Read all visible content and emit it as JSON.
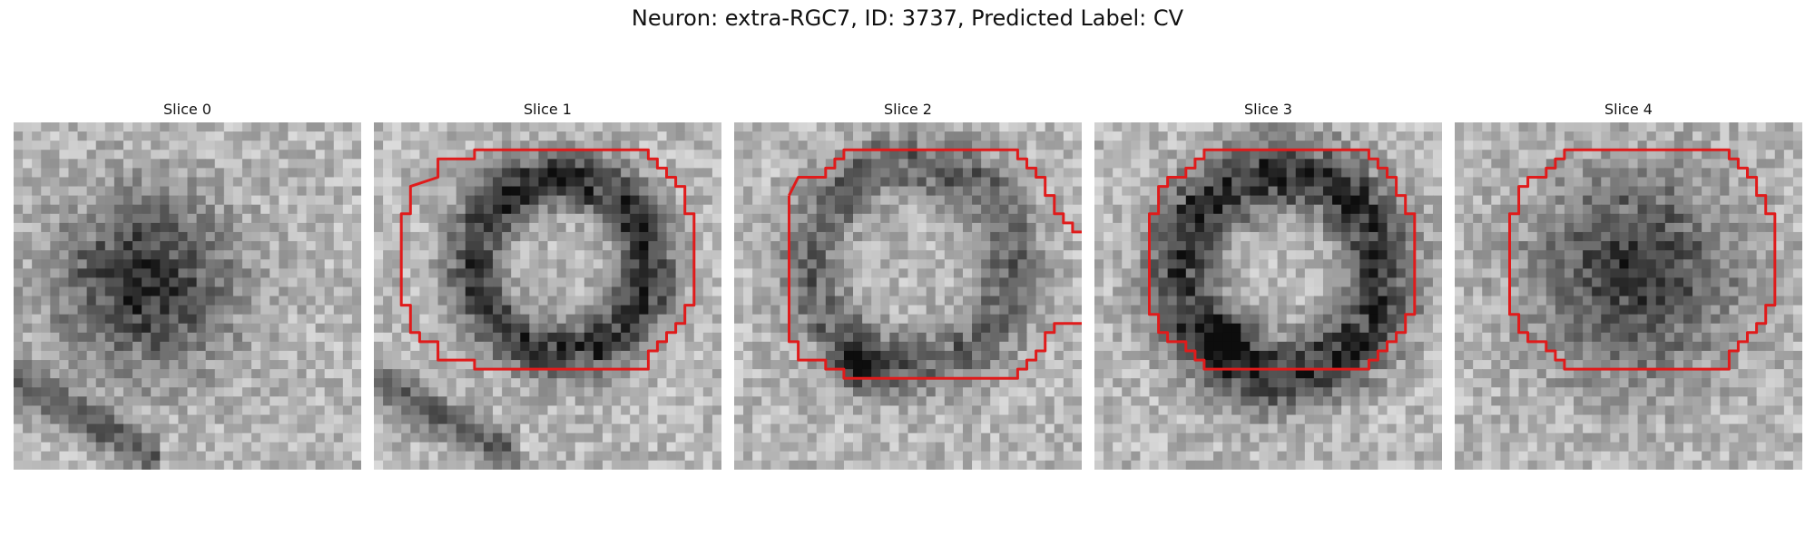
{
  "figure": {
    "title": "Neuron: extra-RGC7, ID: 3737, Predicted Label: CV",
    "contour_color": "#e01b1b"
  },
  "panels": [
    {
      "title": "Slice 0",
      "contour": []
    },
    {
      "title": "Slice 1",
      "contour": [
        [
          4,
          7
        ],
        [
          7,
          6
        ],
        [
          7,
          4
        ],
        [
          11,
          4
        ],
        [
          11,
          3
        ],
        [
          30,
          3
        ],
        [
          30,
          4
        ],
        [
          31,
          4
        ],
        [
          31,
          5
        ],
        [
          32,
          5
        ],
        [
          32,
          6
        ],
        [
          33,
          6
        ],
        [
          33,
          7
        ],
        [
          34,
          7
        ],
        [
          34,
          10
        ],
        [
          35,
          10
        ],
        [
          35,
          20
        ],
        [
          34,
          20
        ],
        [
          34,
          22
        ],
        [
          33,
          22
        ],
        [
          33,
          23
        ],
        [
          32,
          23
        ],
        [
          32,
          24
        ],
        [
          31,
          24
        ],
        [
          31,
          25
        ],
        [
          30,
          25
        ],
        [
          30,
          27
        ],
        [
          11,
          27
        ],
        [
          11,
          26
        ],
        [
          7,
          26
        ],
        [
          7,
          24
        ],
        [
          5,
          24
        ],
        [
          5,
          23
        ],
        [
          4,
          23
        ],
        [
          4,
          20
        ],
        [
          3,
          20
        ],
        [
          3,
          10
        ],
        [
          4,
          10
        ]
      ]
    },
    {
      "title": "Slice 2",
      "contour": [
        [
          6,
          8
        ],
        [
          7,
          6
        ],
        [
          10,
          6
        ],
        [
          10,
          5
        ],
        [
          11,
          5
        ],
        [
          11,
          4
        ],
        [
          12,
          4
        ],
        [
          12,
          3
        ],
        [
          31,
          3
        ],
        [
          31,
          4
        ],
        [
          32,
          4
        ],
        [
          32,
          5
        ],
        [
          33,
          5
        ],
        [
          33,
          6
        ],
        [
          34,
          6
        ],
        [
          34,
          8
        ],
        [
          35,
          8
        ],
        [
          35,
          10
        ],
        [
          36,
          10
        ],
        [
          36,
          11
        ],
        [
          37,
          11
        ],
        [
          37,
          12
        ],
        [
          38,
          12
        ]
      ]
    },
    {
      "title": "Slice 3",
      "contour": [
        [
          7,
          7
        ],
        [
          8,
          7
        ],
        [
          8,
          6
        ],
        [
          10,
          6
        ],
        [
          10,
          5
        ],
        [
          11,
          5
        ],
        [
          11,
          4
        ],
        [
          12,
          4
        ],
        [
          12,
          3
        ],
        [
          30,
          3
        ],
        [
          30,
          4
        ],
        [
          31,
          4
        ],
        [
          31,
          5
        ],
        [
          32,
          5
        ],
        [
          32,
          6
        ],
        [
          33,
          6
        ],
        [
          33,
          8
        ],
        [
          34,
          8
        ],
        [
          34,
          10
        ],
        [
          35,
          10
        ],
        [
          35,
          21
        ],
        [
          34,
          21
        ],
        [
          34,
          23
        ],
        [
          33,
          23
        ],
        [
          33,
          24
        ],
        [
          32,
          24
        ],
        [
          32,
          25
        ],
        [
          31,
          25
        ],
        [
          31,
          26
        ],
        [
          30,
          26
        ],
        [
          30,
          27
        ],
        [
          12,
          27
        ],
        [
          12,
          26
        ],
        [
          11,
          26
        ],
        [
          11,
          25
        ],
        [
          10,
          25
        ],
        [
          10,
          24
        ],
        [
          8,
          24
        ],
        [
          8,
          23
        ],
        [
          7,
          23
        ],
        [
          7,
          21
        ],
        [
          6,
          21
        ],
        [
          6,
          10
        ],
        [
          7,
          10
        ]
      ]
    },
    {
      "title": "Slice 4",
      "contour": [
        [
          7,
          7
        ],
        [
          8,
          7
        ],
        [
          8,
          6
        ],
        [
          10,
          6
        ],
        [
          10,
          5
        ],
        [
          11,
          5
        ],
        [
          11,
          4
        ],
        [
          12,
          4
        ],
        [
          12,
          3
        ],
        [
          30,
          3
        ],
        [
          30,
          4
        ],
        [
          31,
          4
        ],
        [
          31,
          5
        ],
        [
          32,
          5
        ],
        [
          32,
          6
        ],
        [
          33,
          6
        ],
        [
          33,
          8
        ],
        [
          34,
          8
        ],
        [
          34,
          10
        ],
        [
          35,
          10
        ],
        [
          35,
          20
        ],
        [
          34,
          20
        ],
        [
          34,
          22
        ],
        [
          33,
          22
        ],
        [
          33,
          23
        ],
        [
          32,
          23
        ],
        [
          32,
          24
        ],
        [
          31,
          24
        ],
        [
          31,
          25
        ],
        [
          30,
          25
        ],
        [
          30,
          27
        ],
        [
          12,
          27
        ],
        [
          12,
          26
        ],
        [
          11,
          26
        ],
        [
          11,
          25
        ],
        [
          10,
          25
        ],
        [
          10,
          24
        ],
        [
          8,
          24
        ],
        [
          8,
          23
        ],
        [
          7,
          23
        ],
        [
          7,
          21
        ],
        [
          6,
          21
        ],
        [
          6,
          10
        ],
        [
          7,
          10
        ]
      ]
    }
  ]
}
